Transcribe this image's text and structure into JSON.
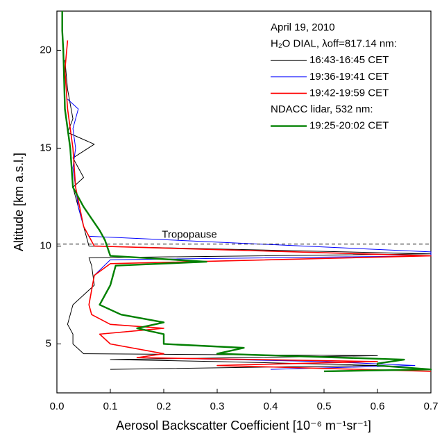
{
  "chart_data": {
    "type": "line",
    "xlabel": "Aerosol Backscatter Coefficient [10⁻⁶ m⁻¹sr⁻¹]",
    "ylabel": "Altitude [km a.s.l.]",
    "xlim": [
      0,
      0.7
    ],
    "xticks": [
      {
        "value": 0,
        "label": "0.0"
      },
      0.1,
      0.2,
      0.3,
      0.4,
      0.5,
      0.6,
      0.7
    ],
    "ylim": [
      2.5,
      22
    ],
    "yticks": [
      5,
      10,
      15,
      20
    ],
    "legend_headers": [
      "April 19, 2010",
      "H₂O DIAL, λoff=817.14 nm:",
      "NDACC lidar, 532 nm:"
    ],
    "legend": "upper right",
    "annotation": {
      "label": "Tropopause",
      "altitude": 10.1
    },
    "series": [
      {
        "name": "16:43-16:45 CET",
        "color": "#000000",
        "x": [
          0.015,
          0.02,
          0.03,
          0.02,
          0.07,
          0.03,
          0.05,
          0.03,
          0.04,
          0.05,
          0.055,
          0.06,
          0.7,
          0.06,
          0.065,
          0.07,
          0.05,
          0.03,
          0.025,
          0.02,
          0.03,
          0.03,
          0.05,
          0.6,
          0.1,
          0.3,
          0.6,
          0.1
        ],
        "y": [
          19.5,
          18,
          16.5,
          15.8,
          15.2,
          14.5,
          13.5,
          13,
          12,
          11,
          10.5,
          10,
          9.6,
          9.4,
          9,
          8,
          7.5,
          7,
          6.5,
          6,
          5.5,
          5,
          4.5,
          4.4,
          4.2,
          4.1,
          3.9,
          3.7
        ]
      },
      {
        "name": "19:36-19:41 CET",
        "color": "#0000ff",
        "x": [
          0.02,
          0.04,
          0.03,
          0.035,
          0.03,
          0.04,
          0.05,
          0.06,
          0.7,
          0.7,
          0.1,
          0.07,
          0.06,
          0.065,
          0.1,
          0.2,
          0.08,
          0.1,
          0.2,
          0.15,
          0.5,
          0.67,
          0.4
        ],
        "y": [
          17.5,
          17,
          16,
          15,
          14,
          12,
          11,
          10.5,
          9.7,
          9.5,
          9.3,
          8.5,
          7,
          6.5,
          6,
          5.8,
          5.5,
          5,
          4.5,
          4.3,
          4.1,
          3.9,
          3.7
        ]
      },
      {
        "name": "19:42-19:59 CET",
        "color": "#ff0000",
        "x": [
          0.02,
          0.015,
          0.02,
          0.03,
          0.035,
          0.05,
          0.06,
          0.07,
          0.7,
          0.1,
          0.07,
          0.06,
          0.065,
          0.1,
          0.2,
          0.08,
          0.1,
          0.2,
          0.15,
          0.6,
          0.3,
          0.7
        ],
        "y": [
          20.5,
          19,
          17,
          15,
          13,
          11,
          10.5,
          10,
          9.5,
          9.1,
          8.5,
          7,
          6.5,
          6,
          5.8,
          5.5,
          5,
          4.5,
          4.3,
          4.1,
          3.9,
          3.6
        ]
      },
      {
        "name": "19:25-20:02 CET",
        "color": "#008000",
        "x": [
          0.01,
          0.01,
          0.012,
          0.015,
          0.025,
          0.03,
          0.05,
          0.08,
          0.09,
          0.1,
          0.28,
          0.11,
          0.1,
          0.08,
          0.12,
          0.2,
          0.15,
          0.2,
          0.2,
          0.35,
          0.3,
          0.65,
          0.6,
          0.6,
          0.7,
          0.5
        ],
        "y": [
          22,
          21,
          20,
          17,
          15,
          13,
          12,
          10.8,
          10.3,
          9.5,
          9.2,
          9,
          8,
          7,
          6.5,
          6.1,
          5.8,
          5.5,
          5,
          4.8,
          4.5,
          4.2,
          4,
          3.9,
          3.7,
          3.6
        ]
      }
    ]
  }
}
